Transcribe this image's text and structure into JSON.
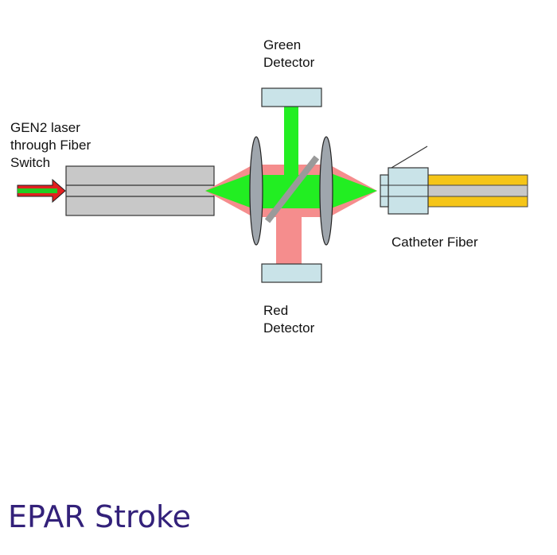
{
  "labels": {
    "green_detector": [
      "Green",
      "Detector"
    ],
    "red_detector": [
      "Red",
      "Detector"
    ],
    "laser_source": [
      "GEN2 laser",
      "through Fiber",
      "Switch"
    ],
    "catheter_fiber": "Catheter Fiber"
  },
  "title": "EPAR Stroke",
  "colors": {
    "green_beam": "#22ee22",
    "red_beam": "#f58d8d",
    "detector_fill": "#c9e3e8",
    "fiber_gray": "#c8c8c8",
    "catheter_yellow": "#f5c518",
    "title_color": "#33217a"
  }
}
